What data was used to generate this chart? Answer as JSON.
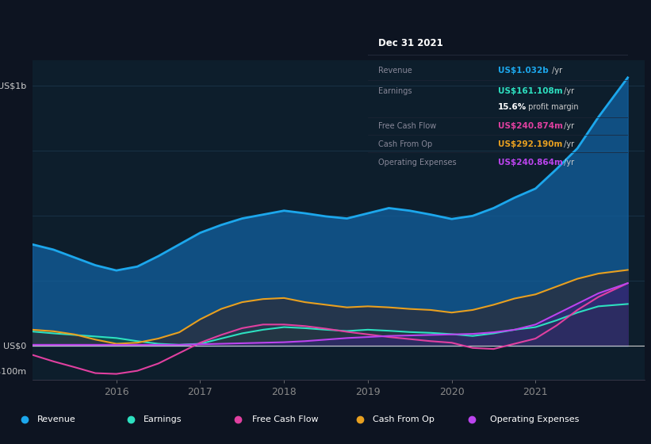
{
  "bg_color": "#0d1421",
  "plot_bg_color": "#0d1e2c",
  "title_text": "Dec 31 2021",
  "ylim": [
    -130,
    1100
  ],
  "xlim": [
    2015.0,
    2022.3
  ],
  "legend_entries": [
    "Revenue",
    "Earnings",
    "Free Cash Flow",
    "Cash From Op",
    "Operating Expenses"
  ],
  "legend_colors": [
    "#1ca7ec",
    "#2de0c0",
    "#e040a0",
    "#e8a020",
    "#bb44ee"
  ],
  "x": [
    2015.0,
    2015.25,
    2015.5,
    2015.75,
    2016.0,
    2016.25,
    2016.5,
    2016.75,
    2017.0,
    2017.25,
    2017.5,
    2017.75,
    2018.0,
    2018.25,
    2018.5,
    2018.75,
    2019.0,
    2019.25,
    2019.5,
    2019.75,
    2020.0,
    2020.25,
    2020.5,
    2020.75,
    2021.0,
    2021.25,
    2021.5,
    2021.75,
    2022.1
  ],
  "revenue": [
    390,
    370,
    340,
    310,
    290,
    305,
    345,
    390,
    435,
    465,
    490,
    505,
    520,
    510,
    498,
    490,
    510,
    530,
    520,
    505,
    488,
    500,
    530,
    570,
    605,
    680,
    760,
    880,
    1032
  ],
  "earnings": [
    55,
    48,
    42,
    36,
    30,
    18,
    8,
    4,
    8,
    28,
    48,
    62,
    72,
    68,
    62,
    57,
    62,
    58,
    53,
    50,
    45,
    38,
    48,
    62,
    72,
    98,
    128,
    152,
    161
  ],
  "free_cash_flow": [
    -35,
    -60,
    -82,
    -105,
    -108,
    -96,
    -68,
    -28,
    12,
    42,
    68,
    82,
    82,
    76,
    66,
    54,
    44,
    34,
    26,
    18,
    12,
    -8,
    -12,
    8,
    28,
    78,
    138,
    188,
    241
  ],
  "cash_from_op": [
    62,
    56,
    44,
    24,
    8,
    12,
    28,
    52,
    102,
    142,
    168,
    180,
    184,
    168,
    158,
    148,
    152,
    148,
    142,
    138,
    128,
    138,
    158,
    182,
    198,
    228,
    258,
    278,
    292
  ],
  "operating_expenses": [
    4,
    4,
    4,
    4,
    4,
    4,
    4,
    4,
    6,
    8,
    10,
    12,
    14,
    18,
    24,
    30,
    34,
    38,
    40,
    42,
    44,
    46,
    52,
    62,
    82,
    122,
    162,
    202,
    241
  ],
  "info_rows": [
    {
      "label": "Revenue",
      "value": "US$1.032b /yr",
      "lcolor": "#888899",
      "vcolor": "#1ca7ec"
    },
    {
      "label": "Earnings",
      "value": "US$161.108m /yr",
      "lcolor": "#888899",
      "vcolor": "#2de0c0"
    },
    {
      "label": "",
      "value": "15.6% profit margin",
      "lcolor": "",
      "vcolor": "#ffffff"
    },
    {
      "label": "Free Cash Flow",
      "value": "US$240.874m /yr",
      "lcolor": "#888899",
      "vcolor": "#e040a0"
    },
    {
      "label": "Cash From Op",
      "value": "US$292.190m /yr",
      "lcolor": "#888899",
      "vcolor": "#e8a020"
    },
    {
      "label": "Operating Expenses",
      "value": "US$240.864m /yr",
      "lcolor": "#888899",
      "vcolor": "#bb44ee"
    }
  ]
}
